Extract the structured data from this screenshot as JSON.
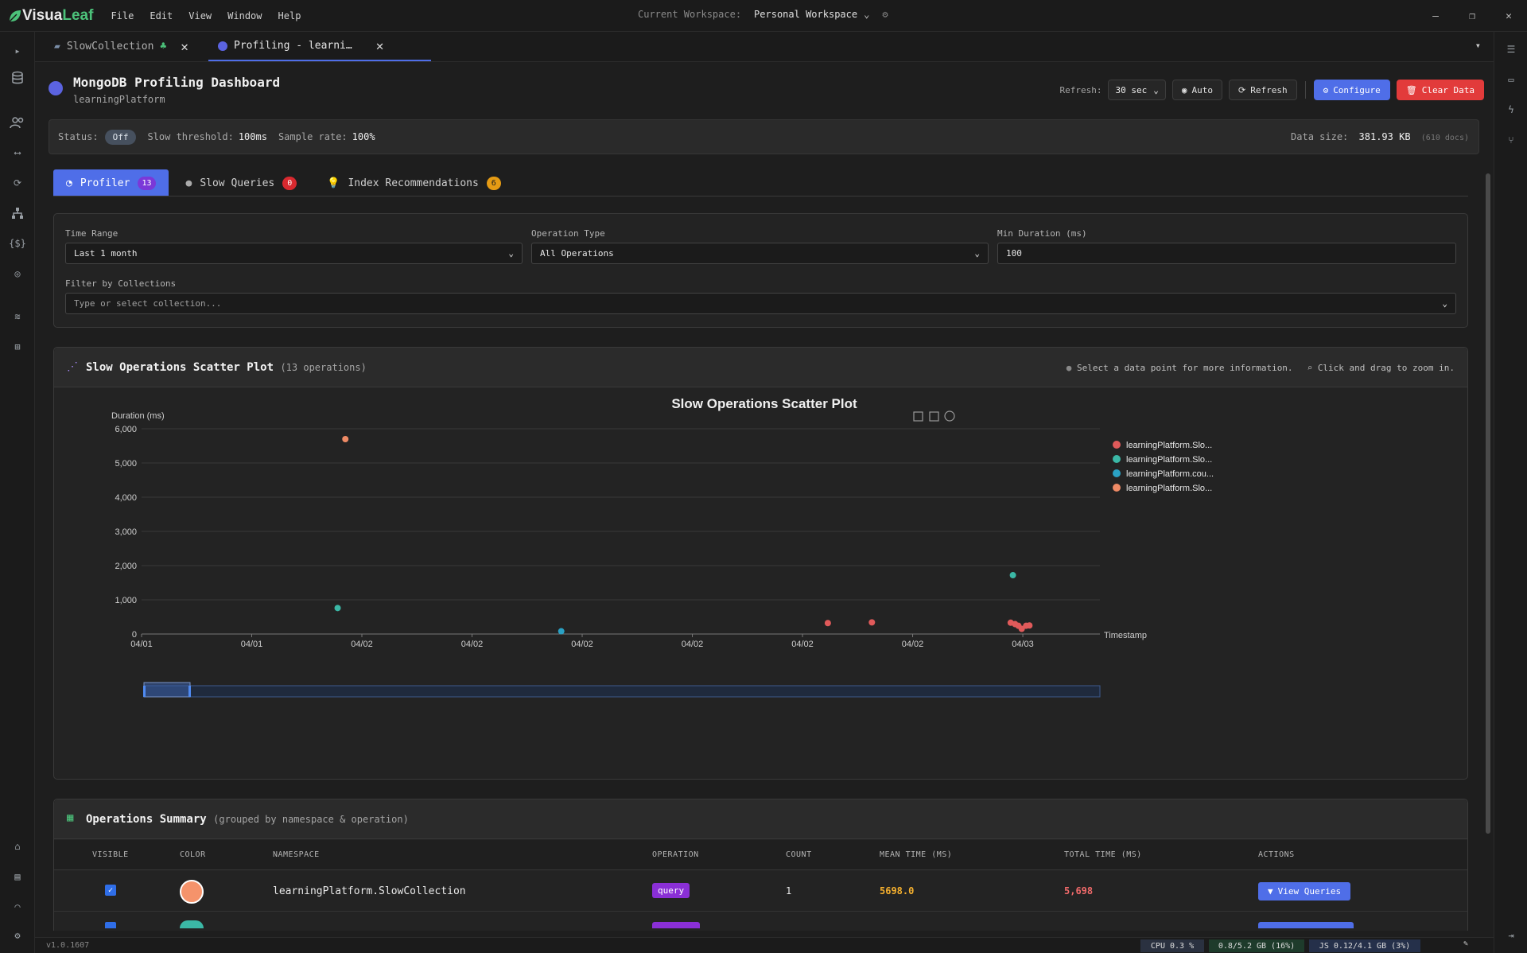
{
  "app": {
    "logo_a": "Visua",
    "logo_b": "Leaf",
    "menu": [
      "File",
      "Edit",
      "View",
      "Window",
      "Help"
    ]
  },
  "workspace": {
    "label": "Current Workspace:",
    "value": "Personal Workspace"
  },
  "tabs": [
    {
      "label": "SlowCollection",
      "active": false
    },
    {
      "label": "Profiling - learni…",
      "active": true
    }
  ],
  "header": {
    "title": "MongoDB Profiling Dashboard",
    "subtitle": "learningPlatform",
    "refresh_label": "Refresh:",
    "refresh_value": "30 sec",
    "auto_label": "Auto",
    "refresh_button": "Refresh",
    "configure_button": "Configure",
    "clear_button": "Clear Data"
  },
  "status": {
    "status_label": "Status:",
    "status_value": "Off",
    "threshold_label": "Slow threshold:",
    "threshold_value": "100ms",
    "sample_label": "Sample rate:",
    "sample_value": "100%",
    "size_label": "Data size:",
    "size_value": "381.93 KB",
    "docs": "(610 docs)"
  },
  "section_tabs": [
    {
      "label": "Profiler",
      "badge": "13",
      "active": true
    },
    {
      "label": "Slow Queries",
      "badge": "0",
      "active": false
    },
    {
      "label": "Index Recommendations",
      "badge": "6",
      "active": false
    }
  ],
  "filters": {
    "time_range_label": "Time Range",
    "time_range_value": "Last 1 month",
    "op_type_label": "Operation Type",
    "op_type_value": "All Operations",
    "min_duration_label": "Min Duration (ms)",
    "min_duration_value": "100",
    "collections_label": "Filter by Collections",
    "collections_placeholder": "Type or select collection..."
  },
  "scatter_card": {
    "title": "Slow Operations Scatter Plot",
    "count": "(13 operations)",
    "hint_select": "Select a data point for more information.",
    "hint_zoom": "Click and drag to zoom in."
  },
  "chart_data": {
    "type": "scatter",
    "title": "Slow Operations Scatter Plot",
    "ylabel": "Duration (ms)",
    "xlabel": "Timestamp",
    "ylim": [
      0,
      6000
    ],
    "yticks": [
      "0",
      "1,000",
      "2,000",
      "3,000",
      "4,000",
      "5,000",
      "6,000"
    ],
    "xticks": [
      "04/01",
      "04/01",
      "04/02",
      "04/02",
      "04/02",
      "04/02",
      "04/02",
      "04/02",
      "04/03"
    ],
    "xlim": [
      0,
      8.7
    ],
    "grid": true,
    "legend_position": "right",
    "series": [
      {
        "name": "learningPlatform.Slo...",
        "color": "#e05a5a",
        "points": [
          [
            6.23,
            320
          ],
          [
            6.63,
            340
          ],
          [
            7.89,
            330
          ],
          [
            7.93,
            290
          ],
          [
            7.96,
            240
          ],
          [
            7.99,
            150
          ],
          [
            8.03,
            240
          ],
          [
            8.06,
            250
          ]
        ]
      },
      {
        "name": "learningPlatform.Slo...",
        "color": "#3bb8a6",
        "points": [
          [
            1.78,
            760
          ],
          [
            7.91,
            1720
          ]
        ]
      },
      {
        "name": "learningPlatform.cou...",
        "color": "#2aa1c4",
        "points": [
          [
            3.81,
            80
          ]
        ]
      },
      {
        "name": "learningPlatform.Slo...",
        "color": "#ee8a65",
        "points": [
          [
            1.85,
            5698
          ]
        ]
      }
    ]
  },
  "summary": {
    "title": "Operations Summary",
    "subtitle": "(grouped by namespace & operation)",
    "columns": [
      "VISIBLE",
      "COLOR",
      "NAMESPACE",
      "OPERATION",
      "COUNT",
      "MEAN TIME (MS)",
      "TOTAL TIME (MS)",
      "ACTIONS"
    ],
    "rows": [
      {
        "color": "#f5936b",
        "namespace": "learningPlatform.SlowCollection",
        "operation": "query",
        "count": "1",
        "mean": "5698.0",
        "total": "5,698",
        "action": "View Queries"
      }
    ]
  },
  "footer": {
    "version": "v1.0.1607",
    "cpu": "CPU 0.3 %",
    "mem": "0.8/5.2 GB (16%)",
    "js": "JS 0.12/4.1 GB (3%)"
  }
}
